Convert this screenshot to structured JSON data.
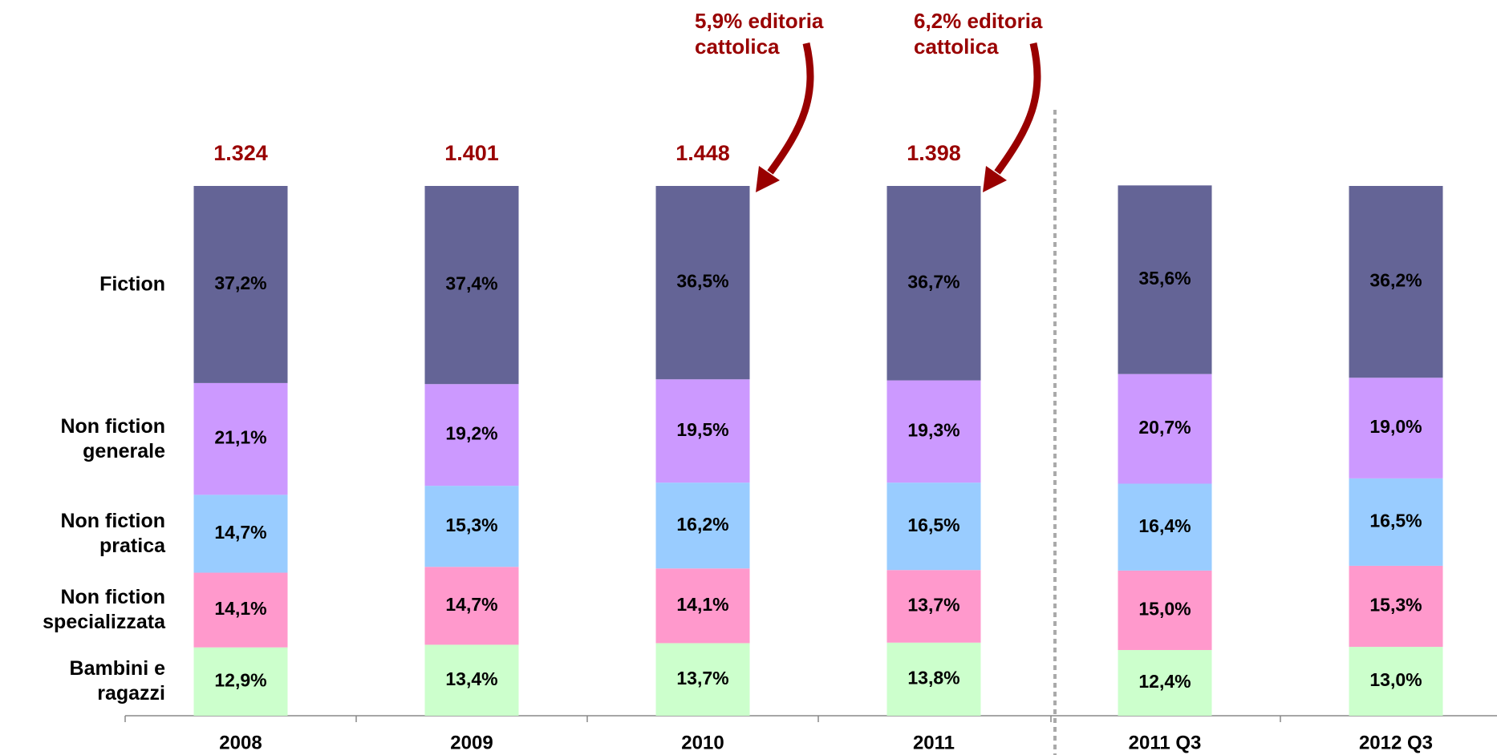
{
  "chart_data": {
    "type": "stacked_bar",
    "categories": [
      "2008",
      "2009",
      "2010",
      "2011",
      "2011 Q3",
      "2012 Q3"
    ],
    "series": [
      {
        "name": "Fiction",
        "color": "#646496",
        "values": [
          37.2,
          37.4,
          36.5,
          36.7,
          35.6,
          36.2
        ],
        "value_labels": [
          "37,2%",
          "37,4%",
          "36,5%",
          "36,7%",
          "35,6%",
          "36,2%"
        ]
      },
      {
        "name": "Non fiction generale",
        "color": "#cc99ff",
        "values": [
          21.1,
          19.2,
          19.5,
          19.3,
          20.7,
          19.0
        ],
        "value_labels": [
          "21,1%",
          "19,2%",
          "19,5%",
          "19,3%",
          "20,7%",
          "19,0%"
        ]
      },
      {
        "name": "Non fiction pratica",
        "color": "#99ccff",
        "values": [
          14.7,
          15.3,
          16.2,
          16.5,
          16.4,
          16.5
        ],
        "value_labels": [
          "14,7%",
          "15,3%",
          "16,2%",
          "16,5%",
          "16,4%",
          "16,5%"
        ]
      },
      {
        "name": "Non fiction specializzata",
        "color": "#ff99cc",
        "values": [
          14.1,
          14.7,
          14.1,
          13.7,
          15.0,
          15.3
        ],
        "value_labels": [
          "14,1%",
          "14,7%",
          "14,1%",
          "13,7%",
          "15,0%",
          "15,3%"
        ]
      },
      {
        "name": "Bambini e ragazzi",
        "color": "#ccffcc",
        "values": [
          12.9,
          13.4,
          13.7,
          13.8,
          12.4,
          13.0
        ],
        "value_labels": [
          "12,9%",
          "13,4%",
          "13,7%",
          "13,8%",
          "12,4%",
          "13,0%"
        ]
      }
    ],
    "totals": {
      "color": "#990000",
      "values": [
        1324,
        1401,
        1448,
        1398,
        null,
        null
      ],
      "value_labels": [
        "1.324",
        "1.401",
        "1.448",
        "1.398",
        null,
        null
      ]
    },
    "annotations": [
      {
        "text": "5,9% editoria cattolica"
      },
      {
        "text": "6,2% editoria cattolica"
      }
    ],
    "ylim": [
      0,
      100
    ]
  }
}
